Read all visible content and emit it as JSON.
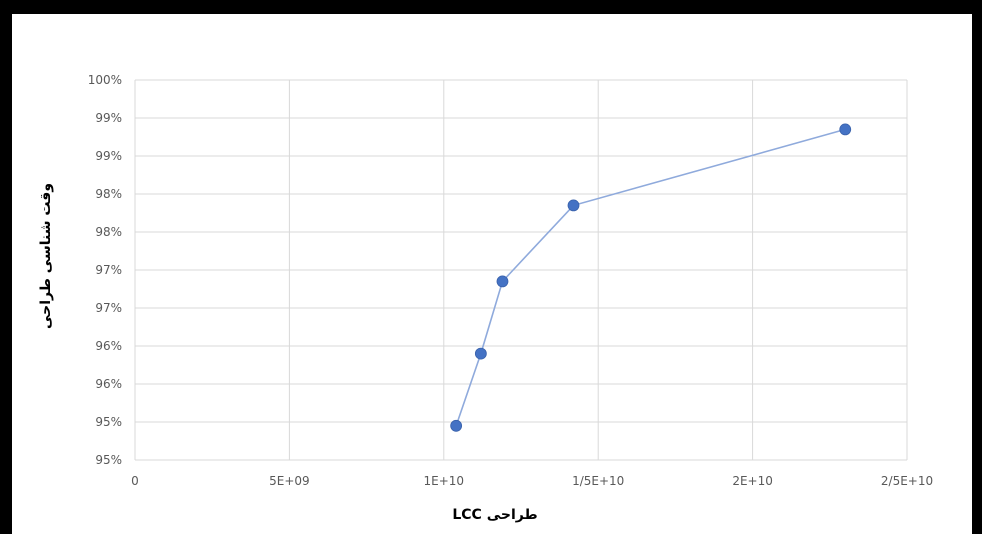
{
  "chart_data": {
    "type": "scatter",
    "title": "",
    "xlabel": "طراحی LCC",
    "ylabel": "وقت شناسی طراحی",
    "xlim": [
      0,
      25000000000
    ],
    "ylim": [
      0.95,
      1.0
    ],
    "x_ticks": [
      {
        "value": 0,
        "label": "0"
      },
      {
        "value": 5000000000,
        "label": "5E+09"
      },
      {
        "value": 10000000000,
        "label": "1E+10"
      },
      {
        "value": 15000000000,
        "label": "1/5E+10"
      },
      {
        "value": 20000000000,
        "label": "2E+10"
      },
      {
        "value": 25000000000,
        "label": "2/5E+10"
      }
    ],
    "y_ticks": [
      {
        "value": 0.95,
        "label": "95%"
      },
      {
        "value": 0.955,
        "label": "95%"
      },
      {
        "value": 0.96,
        "label": "96%"
      },
      {
        "value": 0.965,
        "label": "96%"
      },
      {
        "value": 0.97,
        "label": "97%"
      },
      {
        "value": 0.975,
        "label": "97%"
      },
      {
        "value": 0.98,
        "label": "98%"
      },
      {
        "value": 0.985,
        "label": "98%"
      },
      {
        "value": 0.99,
        "label": "99%"
      },
      {
        "value": 0.995,
        "label": "99%"
      },
      {
        "value": 1.0,
        "label": "100%"
      }
    ],
    "grid": true,
    "legend": "none",
    "series": [
      {
        "color": "#4472C4",
        "line_color": "#8FAADC",
        "x": [
          10400000000,
          11200000000,
          11900000000,
          14200000000,
          23000000000
        ],
        "y": [
          0.9545,
          0.964,
          0.9735,
          0.9835,
          0.9935
        ]
      }
    ]
  }
}
